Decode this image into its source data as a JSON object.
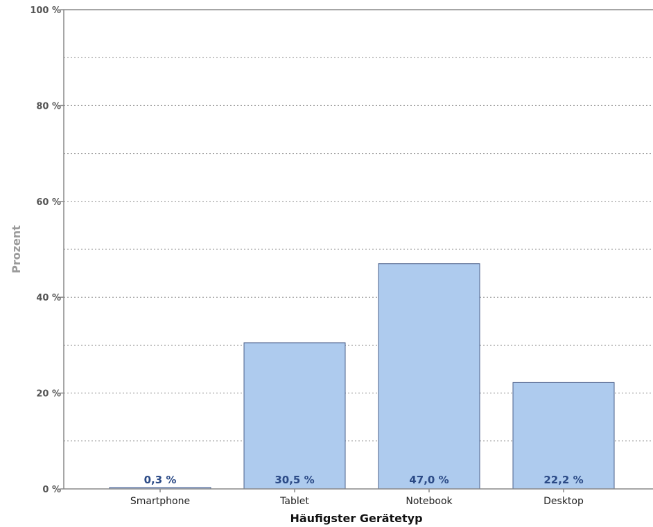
{
  "chart_data": {
    "type": "bar",
    "categories": [
      "Smartphone",
      "Tablet",
      "Notebook",
      "Desktop"
    ],
    "values": [
      0.3,
      30.5,
      47.0,
      22.2
    ],
    "data_labels": [
      "0,3 %",
      "30,5 %",
      "47,0 %",
      "22,2 %"
    ],
    "title": "",
    "xlabel": "Häufigster Gerätetyp",
    "ylabel": "Prozent",
    "ylim": [
      0,
      100
    ],
    "yticks": [
      0,
      20,
      40,
      60,
      80,
      100
    ],
    "ytick_labels": [
      "0 %",
      "20 %",
      "40 %",
      "60 %",
      "80 %",
      "100 %"
    ],
    "grid": true,
    "colors": {
      "bar_fill": "#aecbee",
      "bar_stroke": "#4a5f8a",
      "data_label": "#2b4a86"
    }
  }
}
